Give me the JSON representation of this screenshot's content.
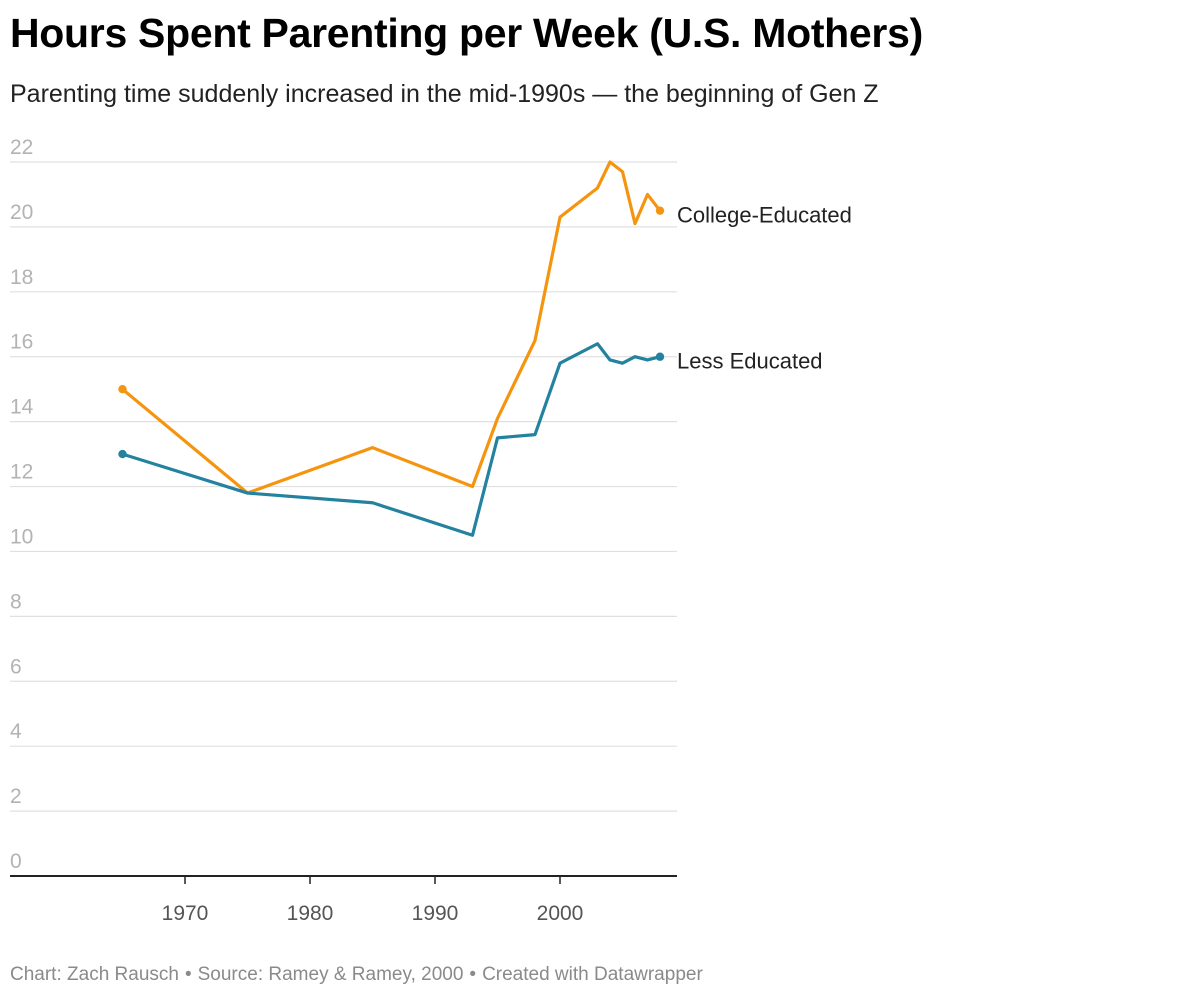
{
  "title": "Hours Spent Parenting per Week (U.S. Mothers)",
  "subtitle": "Parenting time suddenly increased in the mid-1990s — the beginning of Gen Z",
  "footer": {
    "chart_credit": "Chart: Zach Rausch",
    "source": "Source: Ramey & Ramey, 2000",
    "tool": "Created with Datawrapper",
    "separator": "•"
  },
  "colors": {
    "college": "#f5950f",
    "less": "#23829f",
    "grid": "#e0e0e0",
    "axis": "#222222",
    "ytick": "#b3b3b3",
    "xtick": "#555555",
    "series_label": "#222222"
  },
  "chart_data": {
    "type": "line",
    "title": "Hours Spent Parenting per Week (U.S. Mothers)",
    "xlabel": "",
    "ylabel": "",
    "xlim": [
      1960,
      2010
    ],
    "ylim": [
      0,
      22
    ],
    "yticks": [
      0,
      2,
      4,
      6,
      8,
      10,
      12,
      14,
      16,
      18,
      20,
      22
    ],
    "xticks": [
      1970,
      1980,
      1990,
      2000
    ],
    "grid": true,
    "legend": "direct labels at line ends",
    "series": [
      {
        "name": "College-Educated",
        "color": "#f5950f",
        "x": [
          1965,
          1975,
          1985,
          1993,
          1995,
          1998,
          2000,
          2003,
          2004,
          2005,
          2006,
          2007,
          2008
        ],
        "y": [
          15.0,
          11.8,
          13.2,
          12.0,
          14.1,
          16.5,
          20.3,
          21.2,
          22.0,
          21.7,
          20.1,
          21.0,
          20.5
        ]
      },
      {
        "name": "Less Educated",
        "color": "#23829f",
        "x": [
          1965,
          1975,
          1985,
          1993,
          1995,
          1998,
          2000,
          2003,
          2004,
          2005,
          2006,
          2007,
          2008
        ],
        "y": [
          13.0,
          11.8,
          11.5,
          10.5,
          13.5,
          13.6,
          15.8,
          16.4,
          15.9,
          15.8,
          16.0,
          15.9,
          16.0
        ]
      }
    ]
  }
}
